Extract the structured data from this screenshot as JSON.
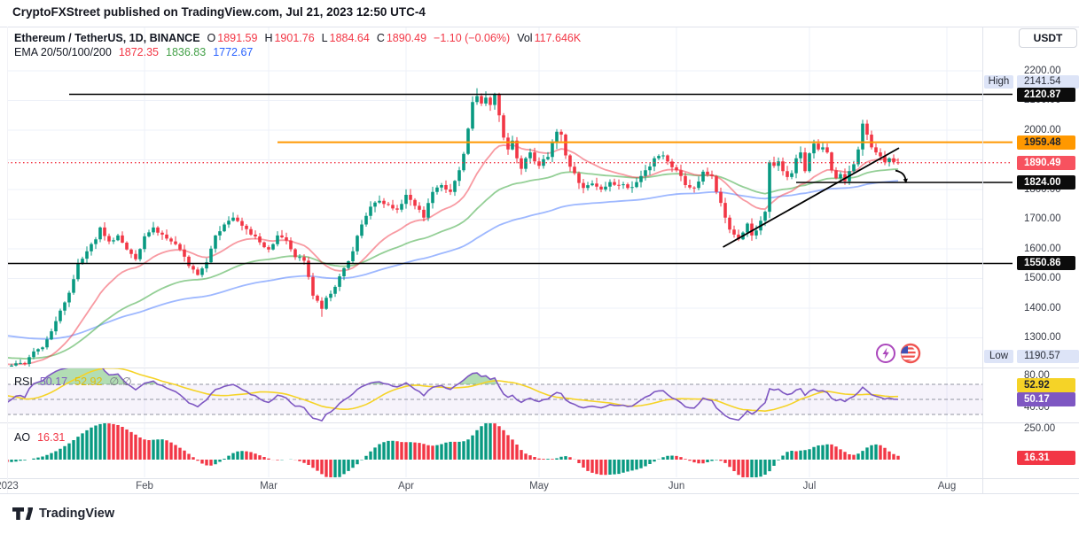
{
  "watermark": {
    "text": "CryptoFXStreet published on TradingView.com, Jul 21, 2023 12:50 UTC-4"
  },
  "legend": {
    "symbol": "Ethereum / TetherUS, 1D, BINANCE",
    "o_label": "O",
    "o": "1891.59",
    "h_label": "H",
    "h": "1901.76",
    "l_label": "L",
    "l": "1884.64",
    "c_label": "C",
    "c": "1890.49",
    "change": "−1.10 (−0.06%)",
    "vol_label": "Vol",
    "vol": "117.646K",
    "ema_label": "EMA 20/50/100/200",
    "ema20": "1872.35",
    "ema50": "1836.83",
    "ema100": "1772.67"
  },
  "panels": {
    "rsi": {
      "label": "RSI",
      "value": "50.17",
      "ma_value": "52.92",
      "empty": "∅ ∅"
    },
    "ao": {
      "label": "AO",
      "value": "16.31"
    }
  },
  "axis": {
    "currency": "USDT",
    "high_label": "High",
    "high_value": "2141.54",
    "low_label": "Low",
    "low_value": "1190.57",
    "price_ticks": [
      {
        "label": "2200.00",
        "value": 2200
      },
      {
        "label": "2100.00",
        "value": 2100
      },
      {
        "label": "2000.00",
        "value": 2000
      },
      {
        "label": "1800.00",
        "value": 1800
      },
      {
        "label": "1700.00",
        "value": 1700
      },
      {
        "label": "1600.00",
        "value": 1600
      },
      {
        "label": "1500.00",
        "value": 1500
      },
      {
        "label": "1400.00",
        "value": 1400
      },
      {
        "label": "1300.00",
        "value": 1300
      }
    ],
    "rsi_ticks": [
      "80.00",
      "40.00"
    ],
    "rsi_ma_badge": "52.92",
    "rsi_badge": "50.17",
    "ao_tick": "250.00",
    "ao_badge": "16.31",
    "months": [
      {
        "label": "2023",
        "day": 0
      },
      {
        "label": "Feb",
        "day": 31
      },
      {
        "label": "Mar",
        "day": 59
      },
      {
        "label": "Apr",
        "day": 90
      },
      {
        "label": "May",
        "day": 120
      },
      {
        "label": "Jun",
        "day": 151
      },
      {
        "label": "Jul",
        "day": 181
      },
      {
        "label": "Aug",
        "day": 212
      }
    ]
  },
  "footer": {
    "logo_text": "TradingView"
  },
  "colors": {
    "up": "#089981",
    "down": "#f23645",
    "ema20": "#f23645",
    "ema50": "#4caf50",
    "ema100": "#2962ff",
    "rsi_line": "#7e57c2",
    "rsi_ma_line": "#f5d327",
    "overbought_fill": "#66bb6a",
    "level_black": "#000000",
    "level_orange": "#ff9800",
    "close_line": "#f23645",
    "high_low_badge_bg": "#dde4f7",
    "grid": "#eef1f8"
  },
  "chart_data": {
    "type": "candlestick",
    "title": "Ethereum / TetherUS, 1D, BINANCE",
    "timeframe": "1D",
    "panes": [
      "price",
      "RSI(14) with MA(14)",
      "Awesome Oscillator"
    ],
    "price_axis_visible_range": [
      1195,
      2350
    ],
    "period_high": 2141.54,
    "period_low": 1190.57,
    "last_close": 1890.49,
    "day_zero_date": "2023-01-01",
    "last_day": 201,
    "anchors": [
      [
        -45,
        1165
      ],
      [
        -38,
        1228
      ],
      [
        -32,
        1262
      ],
      [
        -27,
        1235
      ],
      [
        -22,
        1198
      ],
      [
        -18,
        1188
      ],
      [
        -14,
        1212
      ],
      [
        -10,
        1242
      ],
      [
        -6,
        1208
      ],
      [
        -2,
        1194
      ],
      [
        0,
        1201
      ],
      [
        2,
        1214
      ],
      [
        4,
        1212
      ],
      [
        6,
        1254
      ],
      [
        8,
        1268
      ],
      [
        10,
        1322
      ],
      [
        12,
        1392
      ],
      [
        14,
        1452
      ],
      [
        16,
        1552
      ],
      [
        18,
        1592
      ],
      [
        20,
        1632
      ],
      [
        21,
        1672
      ],
      [
        23,
        1625
      ],
      [
        25,
        1645
      ],
      [
        27,
        1598
      ],
      [
        29,
        1565
      ],
      [
        31,
        1642
      ],
      [
        33,
        1672
      ],
      [
        35,
        1648
      ],
      [
        37,
        1625
      ],
      [
        39,
        1598
      ],
      [
        41,
        1542
      ],
      [
        43,
        1512
      ],
      [
        45,
        1555
      ],
      [
        47,
        1645
      ],
      [
        49,
        1682
      ],
      [
        51,
        1705
      ],
      [
        53,
        1678
      ],
      [
        55,
        1648
      ],
      [
        57,
        1622
      ],
      [
        59,
        1598
      ],
      [
        61,
        1645
      ],
      [
        63,
        1628
      ],
      [
        65,
        1572
      ],
      [
        67,
        1560
      ],
      [
        69,
        1442
      ],
      [
        70,
        1425
      ],
      [
        71,
        1398
      ],
      [
        72,
        1435
      ],
      [
        74,
        1472
      ],
      [
        76,
        1535
      ],
      [
        78,
        1592
      ],
      [
        80,
        1682
      ],
      [
        82,
        1742
      ],
      [
        84,
        1762
      ],
      [
        86,
        1748
      ],
      [
        88,
        1732
      ],
      [
        90,
        1782
      ],
      [
        92,
        1745
      ],
      [
        94,
        1705
      ],
      [
        96,
        1792
      ],
      [
        98,
        1815
      ],
      [
        100,
        1792
      ],
      [
        102,
        1865
      ],
      [
        103,
        1920
      ],
      [
        104,
        2005
      ],
      [
        105,
        2095
      ],
      [
        106,
        2115
      ],
      [
        107,
        2090
      ],
      [
        108,
        2110
      ],
      [
        109,
        2085
      ],
      [
        110,
        2120
      ],
      [
        111,
        2050
      ],
      [
        112,
        1975
      ],
      [
        113,
        1935
      ],
      [
        114,
        1965
      ],
      [
        115,
        1905
      ],
      [
        116,
        1870
      ],
      [
        117,
        1905
      ],
      [
        118,
        1925
      ],
      [
        119,
        1895
      ],
      [
        120,
        1880
      ],
      [
        122,
        1910
      ],
      [
        124,
        1995
      ],
      [
        125,
        1985
      ],
      [
        126,
        1915
      ],
      [
        128,
        1855
      ],
      [
        130,
        1805
      ],
      [
        132,
        1820
      ],
      [
        134,
        1800
      ],
      [
        136,
        1825
      ],
      [
        138,
        1815
      ],
      [
        140,
        1805
      ],
      [
        142,
        1825
      ],
      [
        144,
        1865
      ],
      [
        146,
        1905
      ],
      [
        148,
        1915
      ],
      [
        150,
        1875
      ],
      [
        151,
        1865
      ],
      [
        153,
        1815
      ],
      [
        155,
        1805
      ],
      [
        157,
        1860
      ],
      [
        159,
        1845
      ],
      [
        161,
        1755
      ],
      [
        162,
        1705
      ],
      [
        163,
        1665
      ],
      [
        164,
        1648
      ],
      [
        165,
        1632
      ],
      [
        166,
        1655
      ],
      [
        167,
        1685
      ],
      [
        168,
        1645
      ],
      [
        169,
        1662
      ],
      [
        170,
        1695
      ],
      [
        171,
        1725
      ],
      [
        172,
        1892
      ],
      [
        173,
        1880
      ],
      [
        174,
        1895
      ],
      [
        175,
        1862
      ],
      [
        176,
        1842
      ],
      [
        177,
        1855
      ],
      [
        178,
        1905
      ],
      [
        179,
        1925
      ],
      [
        180,
        1862
      ],
      [
        181,
        1922
      ],
      [
        182,
        1955
      ],
      [
        183,
        1935
      ],
      [
        184,
        1942
      ],
      [
        185,
        1925
      ],
      [
        186,
        1865
      ],
      [
        187,
        1838
      ],
      [
        188,
        1852
      ],
      [
        189,
        1828
      ],
      [
        190,
        1862
      ],
      [
        191,
        1885
      ],
      [
        192,
        1935
      ],
      [
        193,
        2022
      ],
      [
        194,
        1985
      ],
      [
        195,
        1942
      ],
      [
        196,
        1925
      ],
      [
        197,
        1912
      ],
      [
        198,
        1892
      ],
      [
        199,
        1905
      ],
      [
        200,
        1892
      ],
      [
        201,
        1890.49
      ]
    ],
    "specials": {
      "0": {
        "low": 1190.57
      },
      "71": {
        "low": 1371
      },
      "106": {
        "high": 2141.54
      },
      "165": {
        "low": 1626
      },
      "193": {
        "high": 2035
      }
    },
    "levels": [
      {
        "label": "2120.87",
        "price": 2120.87,
        "from_day": 14,
        "line_color": "#000000",
        "line_style": "solid",
        "line_width": 1.5,
        "badge_bg": "#0c0c0c",
        "badge_fg": "#ffffff"
      },
      {
        "label": "1959.48",
        "price": 1959.48,
        "from_day": 61,
        "line_color": "#ff9800",
        "line_style": "solid",
        "line_width": 2,
        "badge_bg": "#ff9800",
        "badge_fg": "#1e222d"
      },
      {
        "label": "1890.49",
        "price": 1890.49,
        "from_day": 0,
        "line_color": "#f23645",
        "line_style": "dotted",
        "line_width": 1.3,
        "badge_bg": "#f7525f",
        "badge_fg": "#ffffff"
      },
      {
        "label": "1824.00",
        "price": 1824,
        "from_day": 178,
        "line_color": "#000000",
        "line_style": "solid",
        "line_width": 1.5,
        "badge_bg": "#0c0c0c",
        "badge_fg": "#ffffff"
      },
      {
        "label": "1550.86",
        "price": 1550.86,
        "from_day": 0,
        "line_color": "#000000",
        "line_style": "solid",
        "line_width": 1.5,
        "badge_bg": "#0c0c0c",
        "badge_fg": "#ffffff"
      }
    ],
    "trendline": {
      "day1": 161.5,
      "price1": 1606,
      "day2": 201.2,
      "price2": 1940
    },
    "arrow": {
      "tip_day": 202.8,
      "tip_price": 1821,
      "from_day": 200.4,
      "from_price": 1864
    },
    "rsi_guides": [
      70,
      50,
      30
    ],
    "rsi_current": 50.17,
    "rsi_ma_current": 52.92,
    "ao_current": 16.31,
    "ema_current": {
      "ema20": 1872.35,
      "ema50": 1836.83,
      "ema100": 1772.67
    }
  }
}
